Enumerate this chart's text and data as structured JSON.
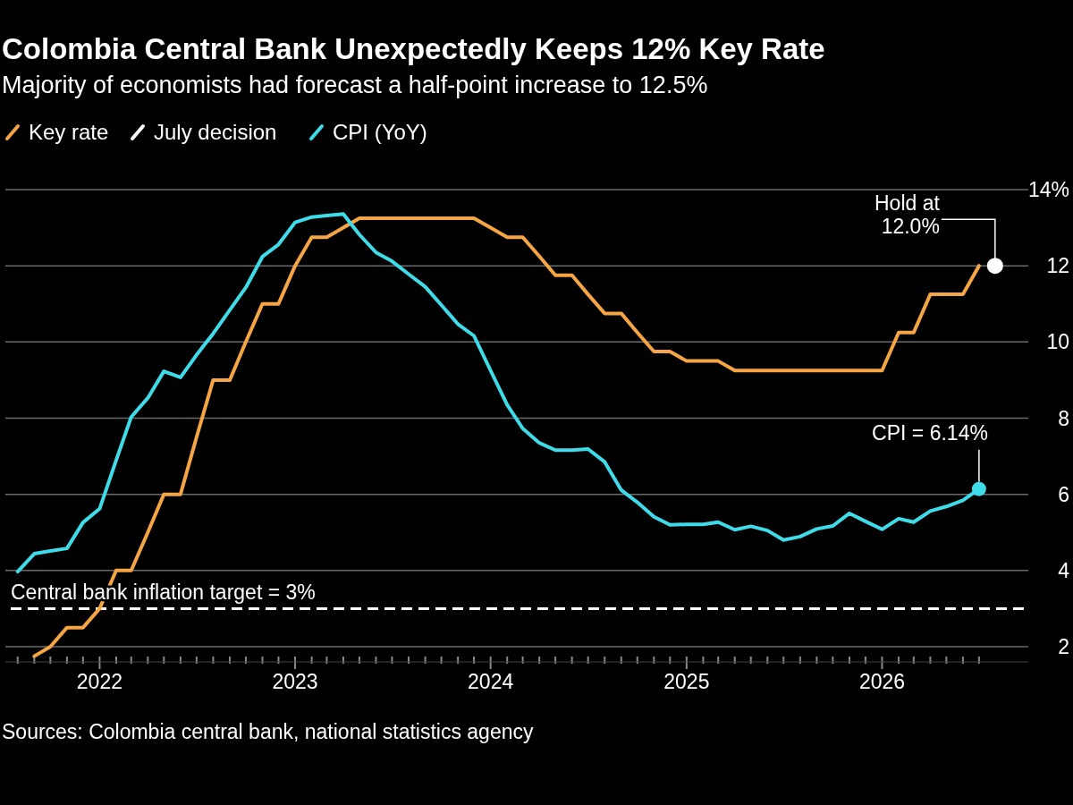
{
  "chart_data": {
    "type": "line",
    "title": "Colombia Central Bank Unexpectedly Keeps 12% Key Rate",
    "subtitle": "Majority of economists had forecast a half-point increase to 12.5%",
    "x": [
      "2021-09",
      "2021-10",
      "2021-11",
      "2021-12",
      "2022-01",
      "2022-02",
      "2022-03",
      "2022-04",
      "2022-05",
      "2022-06",
      "2022-07",
      "2022-08",
      "2022-09",
      "2022-10",
      "2022-11",
      "2022-12",
      "2023-01",
      "2023-02",
      "2023-03",
      "2023-04",
      "2023-05",
      "2023-06",
      "2023-07",
      "2023-08",
      "2023-09",
      "2023-10",
      "2023-11",
      "2023-12",
      "2024-01",
      "2024-02",
      "2024-03",
      "2024-04",
      "2024-05",
      "2024-06",
      "2024-07",
      "2024-08",
      "2024-09",
      "2024-10",
      "2024-11",
      "2024-12",
      "2025-01",
      "2025-02",
      "2025-03",
      "2025-04",
      "2025-05",
      "2025-06",
      "2025-07",
      "2025-08",
      "2025-09",
      "2025-10",
      "2025-11",
      "2025-12",
      "2026-01",
      "2026-02",
      "2026-03",
      "2026-04",
      "2026-05",
      "2026-06",
      "2026-07"
    ],
    "series": [
      {
        "name": "Key rate",
        "color": "#f5a543",
        "values": [
          1.75,
          2.0,
          2.5,
          2.5,
          3.0,
          4.0,
          4.0,
          5.0,
          6.0,
          6.0,
          7.5,
          9.0,
          9.0,
          10.0,
          11.0,
          11.0,
          12.0,
          12.75,
          12.75,
          13.0,
          13.25,
          13.25,
          13.25,
          13.25,
          13.25,
          13.25,
          13.25,
          13.25,
          13.0,
          12.75,
          12.75,
          12.25,
          11.75,
          11.75,
          11.25,
          10.75,
          10.75,
          10.25,
          9.75,
          9.75,
          9.5,
          9.5,
          9.5,
          9.25,
          9.25,
          9.25,
          9.25,
          9.25,
          9.25,
          9.25,
          9.25,
          9.25,
          9.25,
          10.25,
          10.25,
          11.25,
          11.25,
          11.25,
          12.0
        ]
      },
      {
        "name": "July decision",
        "type": "scatter",
        "color": "#ffffff",
        "marker": "circle",
        "x": [
          "2026-07-31"
        ],
        "values": [
          12.0
        ]
      },
      {
        "name": "CPI (YoY)",
        "color": "#3fdbe9",
        "x": [
          "2021-08",
          "2021-09",
          "2021-10",
          "2021-11",
          "2021-12",
          "2022-01",
          "2022-02",
          "2022-03",
          "2022-04",
          "2022-05",
          "2022-06",
          "2022-07",
          "2022-08",
          "2022-09",
          "2022-10",
          "2022-11",
          "2022-12",
          "2023-01",
          "2023-02",
          "2023-03",
          "2023-04",
          "2023-05",
          "2023-06",
          "2023-07",
          "2023-08",
          "2023-09",
          "2023-10",
          "2023-11",
          "2023-12",
          "2024-01",
          "2024-02",
          "2024-03",
          "2024-04",
          "2024-05",
          "2024-06",
          "2024-07",
          "2024-08",
          "2024-09",
          "2024-10",
          "2024-11",
          "2024-12",
          "2025-01",
          "2025-02",
          "2025-03",
          "2025-04",
          "2025-05",
          "2025-06",
          "2025-07",
          "2025-08",
          "2025-09",
          "2025-10",
          "2025-11",
          "2025-12",
          "2026-01",
          "2026-02",
          "2026-03",
          "2026-04",
          "2026-05",
          "2026-06",
          "2026-07"
        ],
        "values": [
          3.97,
          4.44,
          4.51,
          4.58,
          5.26,
          5.62,
          6.9,
          8.03,
          8.53,
          9.23,
          9.07,
          9.66,
          10.22,
          10.84,
          11.43,
          12.24,
          12.56,
          13.14,
          13.28,
          13.32,
          13.36,
          12.82,
          12.35,
          12.12,
          11.78,
          11.45,
          10.97,
          10.47,
          10.16,
          9.25,
          8.35,
          7.73,
          7.35,
          7.16,
          7.16,
          7.19,
          6.85,
          6.11,
          5.79,
          5.41,
          5.2,
          5.21,
          5.21,
          5.27,
          5.07,
          5.16,
          5.05,
          4.8,
          4.89,
          5.09,
          5.17,
          5.5,
          5.29,
          5.08,
          5.36,
          5.27,
          5.56,
          5.68,
          5.84,
          6.14
        ]
      }
    ],
    "xlim": [
      "2021-07-09",
      "2026-10-01"
    ],
    "xticks": [
      {
        "value": "2021-08",
        "label": null
      },
      {
        "value": "2021-09",
        "label": null
      },
      {
        "value": "2021-10",
        "label": null
      },
      {
        "value": "2021-11",
        "label": null
      },
      {
        "value": "2021-12",
        "label": null
      },
      {
        "value": "2022-01",
        "label": "2022"
      },
      {
        "value": "2022-02",
        "label": null
      },
      {
        "value": "2022-03",
        "label": null
      },
      {
        "value": "2022-04",
        "label": null
      },
      {
        "value": "2022-05",
        "label": null
      },
      {
        "value": "2022-06",
        "label": null
      },
      {
        "value": "2022-07",
        "label": null
      },
      {
        "value": "2022-08",
        "label": null
      },
      {
        "value": "2022-09",
        "label": null
      },
      {
        "value": "2022-10",
        "label": null
      },
      {
        "value": "2022-11",
        "label": null
      },
      {
        "value": "2022-12",
        "label": null
      },
      {
        "value": "2023-01",
        "label": "2023"
      },
      {
        "value": "2023-02",
        "label": null
      },
      {
        "value": "2023-03",
        "label": null
      },
      {
        "value": "2023-04",
        "label": null
      },
      {
        "value": "2023-05",
        "label": null
      },
      {
        "value": "2023-06",
        "label": null
      },
      {
        "value": "2023-07",
        "label": null
      },
      {
        "value": "2023-08",
        "label": null
      },
      {
        "value": "2023-09",
        "label": null
      },
      {
        "value": "2023-10",
        "label": null
      },
      {
        "value": "2023-11",
        "label": null
      },
      {
        "value": "2023-12",
        "label": null
      },
      {
        "value": "2024-01",
        "label": "2024"
      },
      {
        "value": "2024-02",
        "label": null
      },
      {
        "value": "2024-03",
        "label": null
      },
      {
        "value": "2024-04",
        "label": null
      },
      {
        "value": "2024-05",
        "label": null
      },
      {
        "value": "2024-06",
        "label": null
      },
      {
        "value": "2024-07",
        "label": null
      },
      {
        "value": "2024-08",
        "label": null
      },
      {
        "value": "2024-09",
        "label": null
      },
      {
        "value": "2024-10",
        "label": null
      },
      {
        "value": "2024-11",
        "label": null
      },
      {
        "value": "2024-12",
        "label": null
      },
      {
        "value": "2025-01",
        "label": "2025"
      },
      {
        "value": "2025-02",
        "label": null
      },
      {
        "value": "2025-03",
        "label": null
      },
      {
        "value": "2025-04",
        "label": null
      },
      {
        "value": "2025-05",
        "label": null
      },
      {
        "value": "2025-06",
        "label": null
      },
      {
        "value": "2025-07",
        "label": null
      },
      {
        "value": "2025-08",
        "label": null
      },
      {
        "value": "2025-09",
        "label": null
      },
      {
        "value": "2025-10",
        "label": null
      },
      {
        "value": "2025-11",
        "label": null
      },
      {
        "value": "2025-12",
        "label": null
      },
      {
        "value": "2026-01",
        "label": "2026"
      },
      {
        "value": "2026-02",
        "label": null
      },
      {
        "value": "2026-03",
        "label": null
      },
      {
        "value": "2026-04",
        "label": null
      },
      {
        "value": "2026-05",
        "label": null
      },
      {
        "value": "2026-06",
        "label": null
      },
      {
        "value": "2026-07",
        "label": null
      }
    ],
    "ylim": [
      1.6,
      14
    ],
    "yticks": [
      2,
      4,
      6,
      8,
      10,
      12,
      {
        "value": 14,
        "label": "14%"
      }
    ],
    "grid": "y",
    "legend": "top left",
    "line_style": "solid",
    "ref_lines": [
      {
        "axis": "y",
        "value": 3,
        "label": "Central bank inflation target = 3%",
        "color": "#ffffff",
        "line_style": "dashed"
      }
    ],
    "annotations": [
      {
        "text": "Hold at\n12.0%",
        "x": "2026-07-31",
        "y": 12.0
      },
      {
        "text": "CPI = 6.14%",
        "x": "2026-07",
        "y": 6.14
      },
      "Sources: Colombia central bank, national statistics agency"
    ]
  }
}
